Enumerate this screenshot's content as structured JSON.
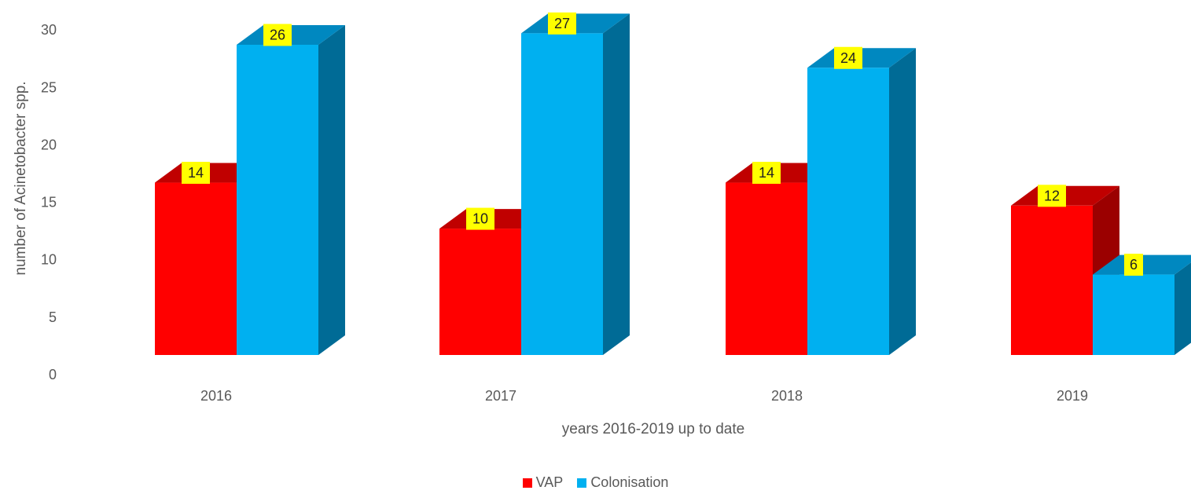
{
  "chart_data": {
    "type": "bar",
    "style": "3d-clustered-column",
    "categories": [
      "2016",
      "2017",
      "2018",
      "2019"
    ],
    "series": [
      {
        "name": "VAP",
        "values": [
          14,
          10,
          14,
          12
        ],
        "color": "#ff0000",
        "top_color": "#c00000",
        "side_color": "#9b0000"
      },
      {
        "name": "Colonisation",
        "values": [
          26,
          27,
          24,
          6
        ],
        "color": "#00b0f0",
        "top_color": "#0088c0",
        "side_color": "#006b96"
      }
    ],
    "data_labels": {
      "VAP": [
        "14",
        "10",
        "14",
        "12"
      ],
      "Colonisation": [
        "26",
        "27",
        "24",
        "6"
      ]
    },
    "data_label_background": "#ffff00",
    "xlabel": "years 2016-2019 up to date",
    "ylabel": "number of Acinetobacter spp.",
    "ylim": [
      0,
      30
    ],
    "yticks": [
      0,
      5,
      10,
      15,
      20,
      25,
      30
    ],
    "grid": false,
    "legend_position": "bottom"
  }
}
